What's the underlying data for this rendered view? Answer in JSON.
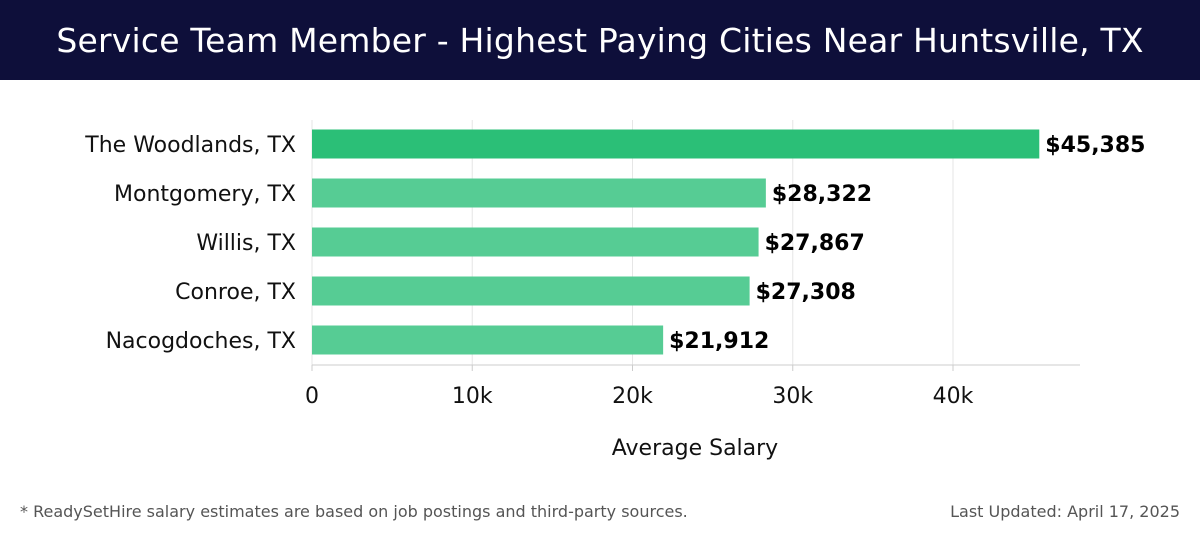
{
  "header": {
    "title": "Service Team Member - Highest Paying Cities Near Huntsville, TX"
  },
  "chart_data": {
    "type": "bar",
    "orientation": "horizontal",
    "title": "Service Team Member - Highest Paying Cities Near Huntsville, TX",
    "categories": [
      "The Woodlands, TX",
      "Montgomery, TX",
      "Willis, TX",
      "Conroe, TX",
      "Nacogdoches, TX"
    ],
    "values": [
      45385,
      28322,
      27867,
      27308,
      21912
    ],
    "value_labels": [
      "$45,385",
      "$28,322",
      "$27,867",
      "$27,308",
      "$21,912"
    ],
    "xlabel": "Average Salary",
    "ylabel": "",
    "xlim": [
      0,
      48000
    ],
    "ticks": [
      0,
      10000,
      20000,
      30000,
      40000
    ],
    "tick_labels": [
      "0",
      "10k",
      "20k",
      "30k",
      "40k"
    ],
    "grid": true,
    "colors": {
      "highlight": "#2bbf77",
      "default": "#56cc94",
      "grid": "#e6e6e6",
      "axis": "#cccccc"
    }
  },
  "footer": {
    "note": "* ReadySetHire salary estimates are based on job postings and third-party sources.",
    "updated": "Last Updated: April 17, 2025"
  }
}
